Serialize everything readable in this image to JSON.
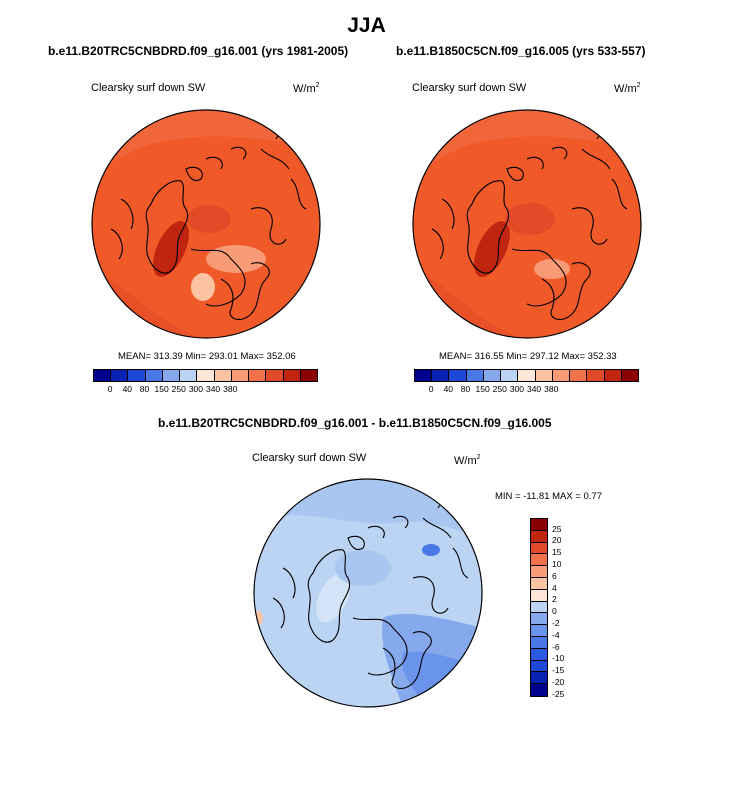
{
  "title": "JJA",
  "colors": {
    "warm_base": "#ef5a28",
    "cool_base": "#c3ddf6",
    "coastline": "#000000",
    "abs_colorbar": [
      "#00008f",
      "#0a22b4",
      "#1e47d6",
      "#4a78e8",
      "#86a9ee",
      "#bcd4f4",
      "#fde7d8",
      "#fcc3a3",
      "#f99b76",
      "#f2724b",
      "#e24b28",
      "#c0250f",
      "#8a0000"
    ],
    "diff_colorbar": [
      "#8a0000",
      "#c0250f",
      "#e24b28",
      "#f2724b",
      "#f99b76",
      "#fcc3a3",
      "#fde7d8",
      "#bcd4f4",
      "#86a9ee",
      "#6a93ec",
      "#4a78e8",
      "#2a5ae2",
      "#1e47d6",
      "#0a22b4",
      "#00008f"
    ]
  },
  "panels": [
    {
      "subtitle": "b.e11.B20TRC5CNBDRD.f09_g16.001 (yrs 1981-2005)",
      "varname": "Clearsky surf down SW",
      "units": "W/m",
      "units_sup": "2",
      "stats": "MEAN= 313.39  Min= 293.01  Max= 352.06",
      "colorbar_labels": [
        "0",
        "40",
        "80",
        "150",
        "250",
        "300",
        "340",
        "380"
      ]
    },
    {
      "subtitle": "b.e11.B1850C5CN.f09_g16.005 (yrs 533-557)",
      "varname": "Clearsky surf down SW",
      "units": "W/m",
      "units_sup": "2",
      "stats": "MEAN= 316.55  Min= 297.12  Max= 352.33",
      "colorbar_labels": [
        "0",
        "40",
        "80",
        "150",
        "250",
        "300",
        "340",
        "380"
      ]
    }
  ],
  "diff": {
    "subtitle": "b.e11.B20TRC5CNBDRD.f09_g16.001 - b.e11.B1850C5CN.f09_g16.005",
    "varname": "Clearsky surf down SW",
    "units": "W/m",
    "units_sup": "2",
    "stats": "MIN = -11.81  MAX =   0.77",
    "colorbar_labels": [
      "25",
      "20",
      "15",
      "10",
      "6",
      "4",
      "2",
      "0",
      "-2",
      "-4",
      "-6",
      "-10",
      "-15",
      "-20",
      "-25"
    ]
  }
}
